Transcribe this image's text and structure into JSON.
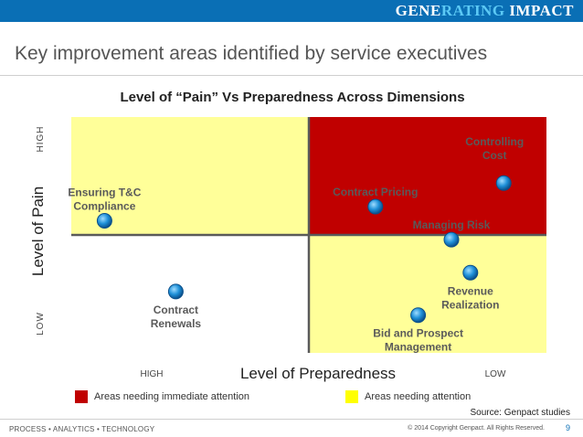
{
  "header": {
    "brand_part1": "GENE",
    "brand_part2": "RATING",
    "brand_part3": " IMPACT",
    "bar_color": "#0a6fb5",
    "accent_color": "#5cc9f5"
  },
  "slide_title": "Key improvement areas identified by service executives",
  "chart_data": {
    "type": "scatter",
    "title": "Level of “Pain” Vs Preparedness Across Dimensions",
    "xlabel": "Level of Preparedness",
    "ylabel": "Level of Pain",
    "x_ticks": {
      "left": "HIGH",
      "right": "LOW"
    },
    "y_ticks": {
      "top": "HIGH",
      "bottom": "LOW"
    },
    "xlim": [
      0,
      10
    ],
    "ylim": [
      0,
      10
    ],
    "quadrants": [
      {
        "position": "top-left",
        "fill": "#ffff99",
        "meaning": "Areas needing attention"
      },
      {
        "position": "top-right",
        "fill": "#c00000",
        "meaning": "Areas needing immediate attention"
      },
      {
        "position": "bottom-left",
        "fill": "#ffffff",
        "meaning": ""
      },
      {
        "position": "bottom-right",
        "fill": "#ffff99",
        "meaning": "Areas needing attention"
      }
    ],
    "points": [
      {
        "label_lines": [
          "Ensuring T&C",
          "Compliance"
        ],
        "x": 0.7,
        "y": 5.6,
        "label_anchor": "above"
      },
      {
        "label_lines": [
          "Contract Pricing"
        ],
        "x": 6.4,
        "y": 6.2,
        "label_anchor": "above"
      },
      {
        "label_lines": [
          "Controlling",
          "Cost"
        ],
        "x": 9.1,
        "y": 7.2,
        "label_anchor": "above-left"
      },
      {
        "label_lines": [
          "Managing Risk"
        ],
        "x": 8.0,
        "y": 4.8,
        "label_anchor": "above"
      },
      {
        "label_lines": [
          "Contract",
          "Renewals"
        ],
        "x": 2.2,
        "y": 2.6,
        "label_anchor": "below"
      },
      {
        "label_lines": [
          "Revenue",
          "Realization"
        ],
        "x": 8.4,
        "y": 3.4,
        "label_anchor": "below"
      },
      {
        "label_lines": [
          "Bid and Prospect",
          "Management"
        ],
        "x": 7.3,
        "y": 1.6,
        "label_anchor": "below"
      }
    ],
    "point_color": "#1e90d8",
    "legend": [
      {
        "label": "Areas needing immediate attention",
        "color": "#c00000"
      },
      {
        "label": "Areas needing attention",
        "color": "#ffff00"
      }
    ],
    "grid": false,
    "legend_placement": "bottom"
  },
  "source": "Source: Genpact studies",
  "footer": {
    "left": "PROCESS • ANALYTICS • TECHNOLOGY",
    "copyright": "© 2014 Copyright Genpact. All Rights Reserved.",
    "page_number": "9"
  }
}
